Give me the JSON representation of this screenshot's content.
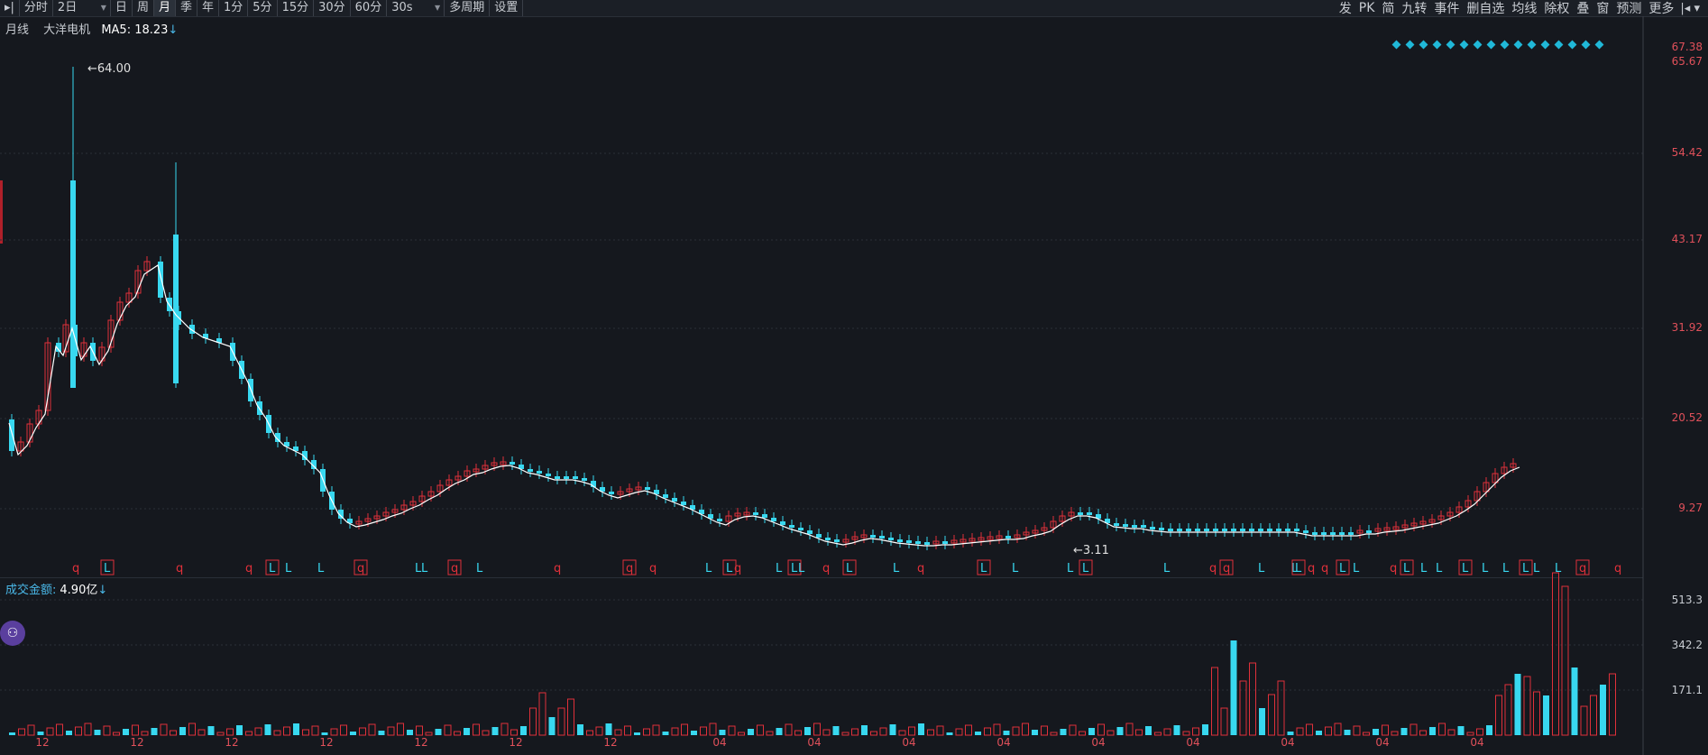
{
  "toolbar": {
    "left_items": [
      "分时",
      "2日",
      "日",
      "周",
      "月",
      "季",
      "年",
      "1分",
      "5分",
      "15分",
      "30分",
      "60分",
      "30s",
      "多周期",
      "设置"
    ],
    "active_item": "月",
    "right_items": [
      "发",
      "PK",
      "简",
      "九转",
      "事件",
      "删自选",
      "均线",
      "除权",
      "叠",
      "窗",
      "预测",
      "更多"
    ]
  },
  "legend": {
    "period": "月线",
    "name": "大洋电机",
    "ma_text": "MA5: 18.23",
    "arrow": "↓"
  },
  "volume_legend": {
    "label": "成交金额:",
    "value": "4.90亿",
    "arrow": "↓"
  },
  "price_axis_labels": [
    "67.38",
    "65.67",
    "54.42",
    "43.17",
    "31.92",
    "20.52",
    "9.27"
  ],
  "volume_axis_labels": [
    "513.3",
    "342.2",
    "171.1"
  ],
  "x_labels": [
    "12",
    "12",
    "12",
    "12",
    "12",
    "12",
    "12",
    "04",
    "04",
    "04",
    "04",
    "04",
    "04",
    "04",
    "04",
    "04"
  ],
  "annotations": {
    "high": "64.00",
    "low": "3.11"
  },
  "colors": {
    "up": "#e0303a",
    "down": "#38d8f0",
    "ma": "#ffffff",
    "background": "#15181e",
    "grid": "#2a2f38",
    "axis_text": "#e0505a"
  },
  "chart_data": {
    "type": "candlestick",
    "ylim": [
      3.11,
      67.38
    ],
    "price_ticks": [
      9.27,
      20.52,
      31.92,
      43.17,
      54.42,
      65.67,
      67.38
    ],
    "volume_ticks": [
      171.1,
      342.2,
      513.3
    ],
    "series": [
      {
        "name": "MA5",
        "value_last": 18.23
      }
    ],
    "high": 64.0,
    "low": 3.11
  }
}
